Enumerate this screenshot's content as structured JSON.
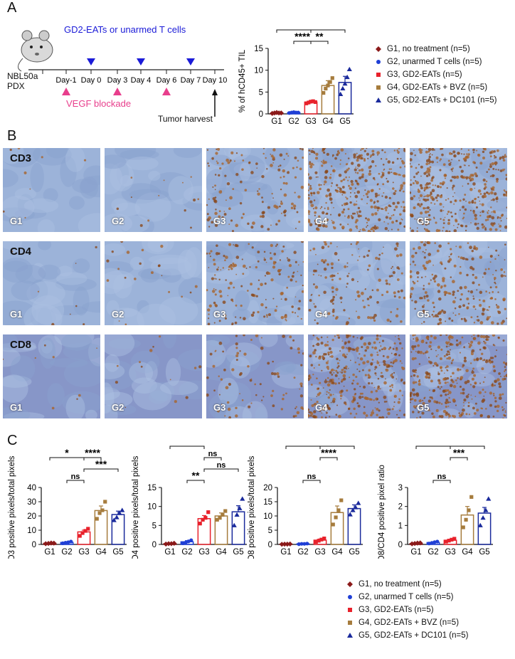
{
  "panels": {
    "a": "A",
    "b": "B",
    "c": "C"
  },
  "timeline": {
    "model_line1": "NBL50a",
    "model_line2": "PDX",
    "treatment_title": "GD2-EATs or unarmed T cells",
    "days": [
      "Day-1",
      "Day 0",
      "Day 3",
      "Day 4",
      "Day 6",
      "Day 7",
      "Day 10"
    ],
    "vegf_label": "VEGF blockade",
    "harvest_label": "Tumor harvest",
    "colors": {
      "blue": "#1b1bd8",
      "pink": "#e83e8c"
    }
  },
  "legend": {
    "items": [
      {
        "label": "G1, no treatment (n=5)",
        "color": "#8b1a1a",
        "marker": "diamond"
      },
      {
        "label": "G2, unarmed T cells (n=5)",
        "color": "#1f3fd6",
        "marker": "circle"
      },
      {
        "label": "G3, GD2-EATs (n=5)",
        "color": "#e8212b",
        "marker": "square"
      },
      {
        "label": "G4, GD2-EATs + BVZ (n=5)",
        "color": "#a67c3d",
        "marker": "square"
      },
      {
        "label": "G5, GD2-EATs + DC101 (n=5)",
        "color": "#1a2a9c",
        "marker": "triangle"
      }
    ]
  },
  "histology": {
    "rows": [
      "CD3",
      "CD4",
      "CD8"
    ],
    "groups": [
      "G1",
      "G2",
      "G3",
      "G4",
      "G5"
    ]
  },
  "chart_data": [
    {
      "type": "bar",
      "id": "tilChart",
      "categories": [
        "G1",
        "G2",
        "G3",
        "G4",
        "G5"
      ],
      "values": [
        0.2,
        0.3,
        2.7,
        6.5,
        7.2
      ],
      "errors": [
        0.1,
        0.1,
        0.3,
        1.1,
        1.4
      ],
      "points": [
        [
          0.1,
          0.2,
          0.3,
          0.2,
          0.2
        ],
        [
          0.2,
          0.3,
          0.4,
          0.3,
          0.3
        ],
        [
          2.4,
          2.6,
          2.8,
          2.9,
          2.7
        ],
        [
          4.8,
          5.8,
          6.5,
          7.3,
          8.2
        ],
        [
          4.5,
          5.8,
          6.9,
          8.4,
          10.2
        ]
      ],
      "ylabel": "% of hCD45+ TIL",
      "ylim": [
        0,
        15
      ],
      "yticks": [
        0,
        5,
        10,
        15
      ],
      "brackets": [
        {
          "from": 0,
          "to": 2,
          "label": "****",
          "level": 1
        },
        {
          "from": 1,
          "to": 2,
          "label": "****",
          "level": 0
        },
        {
          "from": 2,
          "to": 3,
          "label": "**",
          "level": 0
        },
        {
          "from": 2,
          "to": 4,
          "label": "***",
          "level": 1
        }
      ]
    },
    {
      "type": "bar",
      "id": "cd3Chart",
      "categories": [
        "G1",
        "G2",
        "G3",
        "G4",
        "G5"
      ],
      "values": [
        0.8,
        1.4,
        8.8,
        23.8,
        21.0
      ],
      "errors": [
        0.3,
        0.5,
        1.2,
        3.2,
        2.4
      ],
      "points": [
        [
          0.5,
          0.7,
          1.0,
          0.9
        ],
        [
          0.8,
          1.2,
          1.5,
          2.0
        ],
        [
          6.0,
          8.0,
          9.5,
          11.0
        ],
        [
          18,
          22,
          24,
          30
        ],
        [
          17,
          19,
          22,
          24
        ]
      ],
      "ylabel": "% CD3 positive pixels/total pixels",
      "ylim": [
        0,
        40
      ],
      "yticks": [
        0,
        10,
        20,
        30,
        40
      ],
      "brackets": [
        {
          "from": 0,
          "to": 2,
          "label": "*",
          "level": 2
        },
        {
          "from": 1,
          "to": 2,
          "label": "ns",
          "level": 0
        },
        {
          "from": 2,
          "to": 3,
          "label": "****",
          "level": 2
        },
        {
          "from": 2,
          "to": 4,
          "label": "***",
          "level": 1
        }
      ]
    },
    {
      "type": "bar",
      "id": "cd4Chart",
      "categories": [
        "G1",
        "G2",
        "G3",
        "G4",
        "G5"
      ],
      "values": [
        0.2,
        0.7,
        6.8,
        7.5,
        8.6
      ],
      "errors": [
        0.1,
        0.3,
        0.8,
        0.8,
        1.6
      ],
      "points": [
        [
          0.1,
          0.2,
          0.2,
          0.3
        ],
        [
          0.3,
          0.5,
          0.8,
          1.1
        ],
        [
          5.5,
          6.5,
          7.0,
          8.5
        ],
        [
          6.5,
          7.0,
          7.8,
          8.8
        ],
        [
          5.0,
          7.8,
          9.5,
          12.0
        ]
      ],
      "ylabel": "% CD4 positive pixels/total pixels",
      "ylim": [
        0,
        15
      ],
      "yticks": [
        0,
        5,
        10,
        15
      ],
      "brackets": [
        {
          "from": 0,
          "to": 2,
          "label": "***",
          "level": 3
        },
        {
          "from": 1,
          "to": 2,
          "label": "**",
          "level": 0
        },
        {
          "from": 2,
          "to": 3,
          "label": "ns",
          "level": 2
        },
        {
          "from": 2,
          "to": 4,
          "label": "ns",
          "level": 1
        }
      ]
    },
    {
      "type": "bar",
      "id": "cd8Chart",
      "categories": [
        "G1",
        "G2",
        "G3",
        "G4",
        "G5"
      ],
      "values": [
        0.1,
        0.2,
        1.5,
        11.2,
        12.6
      ],
      "errors": [
        0.05,
        0.1,
        0.4,
        2.3,
        1.3
      ],
      "points": [
        [
          0.05,
          0.1,
          0.1,
          0.15
        ],
        [
          0.1,
          0.2,
          0.2,
          0.3
        ],
        [
          0.9,
          1.3,
          1.7,
          2.1
        ],
        [
          7.0,
          9.5,
          12,
          15.5
        ],
        [
          10.5,
          12,
          13,
          14.5
        ]
      ],
      "ylabel": "% CD8 positive pixels/total pixels",
      "ylim": [
        0,
        20
      ],
      "yticks": [
        0,
        5,
        10,
        15,
        20
      ],
      "brackets": [
        {
          "from": 0,
          "to": 2,
          "label": "ns",
          "level": 3
        },
        {
          "from": 1,
          "to": 2,
          "label": "ns",
          "level": 0
        },
        {
          "from": 2,
          "to": 3,
          "label": "****",
          "level": 2
        },
        {
          "from": 2,
          "to": 4,
          "label": "****",
          "level": 3
        }
      ]
    },
    {
      "type": "bar",
      "id": "ratioChart",
      "categories": [
        "G1",
        "G2",
        "G3",
        "G4",
        "G5"
      ],
      "values": [
        0.05,
        0.1,
        0.22,
        1.55,
        1.65
      ],
      "errors": [
        0.02,
        0.03,
        0.05,
        0.45,
        0.3
      ],
      "points": [
        [
          0.03,
          0.05,
          0.07,
          0.08
        ],
        [
          0.05,
          0.08,
          0.12,
          0.15
        ],
        [
          0.15,
          0.2,
          0.25,
          0.3
        ],
        [
          0.9,
          1.3,
          1.8,
          2.5
        ],
        [
          1.0,
          1.4,
          1.8,
          2.4
        ]
      ],
      "ylabel": "CD8/CD4 positive pixel ratio",
      "ylim": [
        0,
        3
      ],
      "yticks": [
        0,
        1,
        2,
        3
      ],
      "brackets": [
        {
          "from": 0,
          "to": 2,
          "label": "ns",
          "level": 3
        },
        {
          "from": 1,
          "to": 2,
          "label": "ns",
          "level": 0
        },
        {
          "from": 2,
          "to": 3,
          "label": "***",
          "level": 2
        },
        {
          "from": 2,
          "to": 4,
          "label": "***",
          "level": 3
        }
      ]
    }
  ]
}
